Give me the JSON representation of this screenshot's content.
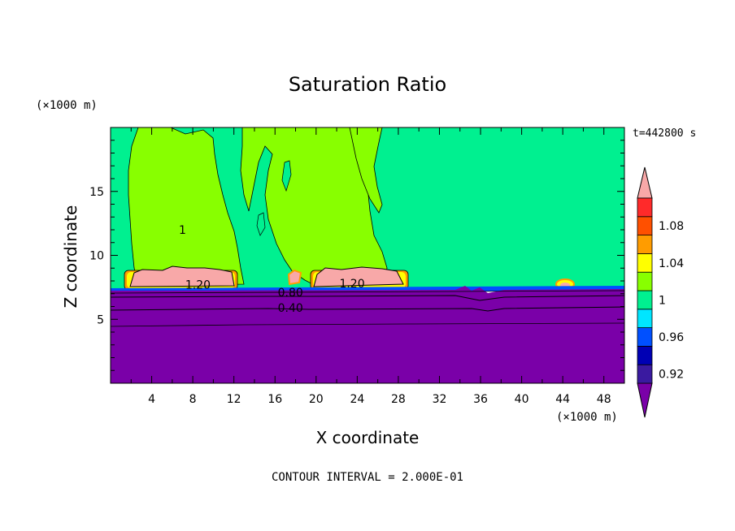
{
  "chart_data": {
    "type": "heatmap",
    "title": "Saturation Ratio",
    "xlabel": "X coordinate",
    "ylabel": "Z coordinate",
    "x_unit": "(×1000 m)",
    "y_unit": "(×1000 m)",
    "time_label": "t=442800 s",
    "footer": "CONTOUR INTERVAL = 2.000E-01",
    "xlim": [
      0,
      50
    ],
    "ylim": [
      0,
      20
    ],
    "x_ticks": [
      4,
      8,
      12,
      16,
      20,
      24,
      28,
      32,
      36,
      40,
      44,
      48
    ],
    "x_tick_labels": [
      "4",
      "8",
      "12",
      "16",
      "20",
      "24",
      "28",
      "32",
      "36",
      "40",
      "44",
      "48"
    ],
    "y_ticks": [
      5,
      10,
      15
    ],
    "y_tick_labels": [
      "5",
      "10",
      "15"
    ],
    "colorbar": {
      "levels": [
        0.92,
        0.94,
        0.96,
        0.98,
        1.0,
        1.02,
        1.04,
        1.06,
        1.08,
        1.1
      ],
      "labels": [
        "0.92",
        "0.96",
        "1",
        "1.04",
        "1.08"
      ],
      "label_values": [
        0.92,
        0.96,
        1.0,
        1.04,
        1.08
      ],
      "colors": [
        "#7a00a8",
        "#3a1aa0",
        "#0000b4",
        "#0050ff",
        "#00e6ff",
        "#00f090",
        "#88ff00",
        "#ffff00",
        "#ff9c00",
        "#ff5000",
        "#ff2a2a",
        "#f8a8a8"
      ]
    },
    "contour_labels": [
      {
        "text": "1",
        "x": 7,
        "y": 12
      },
      {
        "text": "1.20",
        "x": 8.5,
        "y": 7.7
      },
      {
        "text": "1.20",
        "x": 23.5,
        "y": 7.8
      },
      {
        "text": "0.80",
        "x": 17.5,
        "y": 7.1
      },
      {
        "text": "0.40",
        "x": 17.5,
        "y": 5.9
      }
    ],
    "regions": {
      "background_above_cloud": 0.99,
      "cloud_columns": 1.01,
      "supersaturated_patches": 1.1,
      "dry_layer_below_z7": 0.9
    }
  }
}
